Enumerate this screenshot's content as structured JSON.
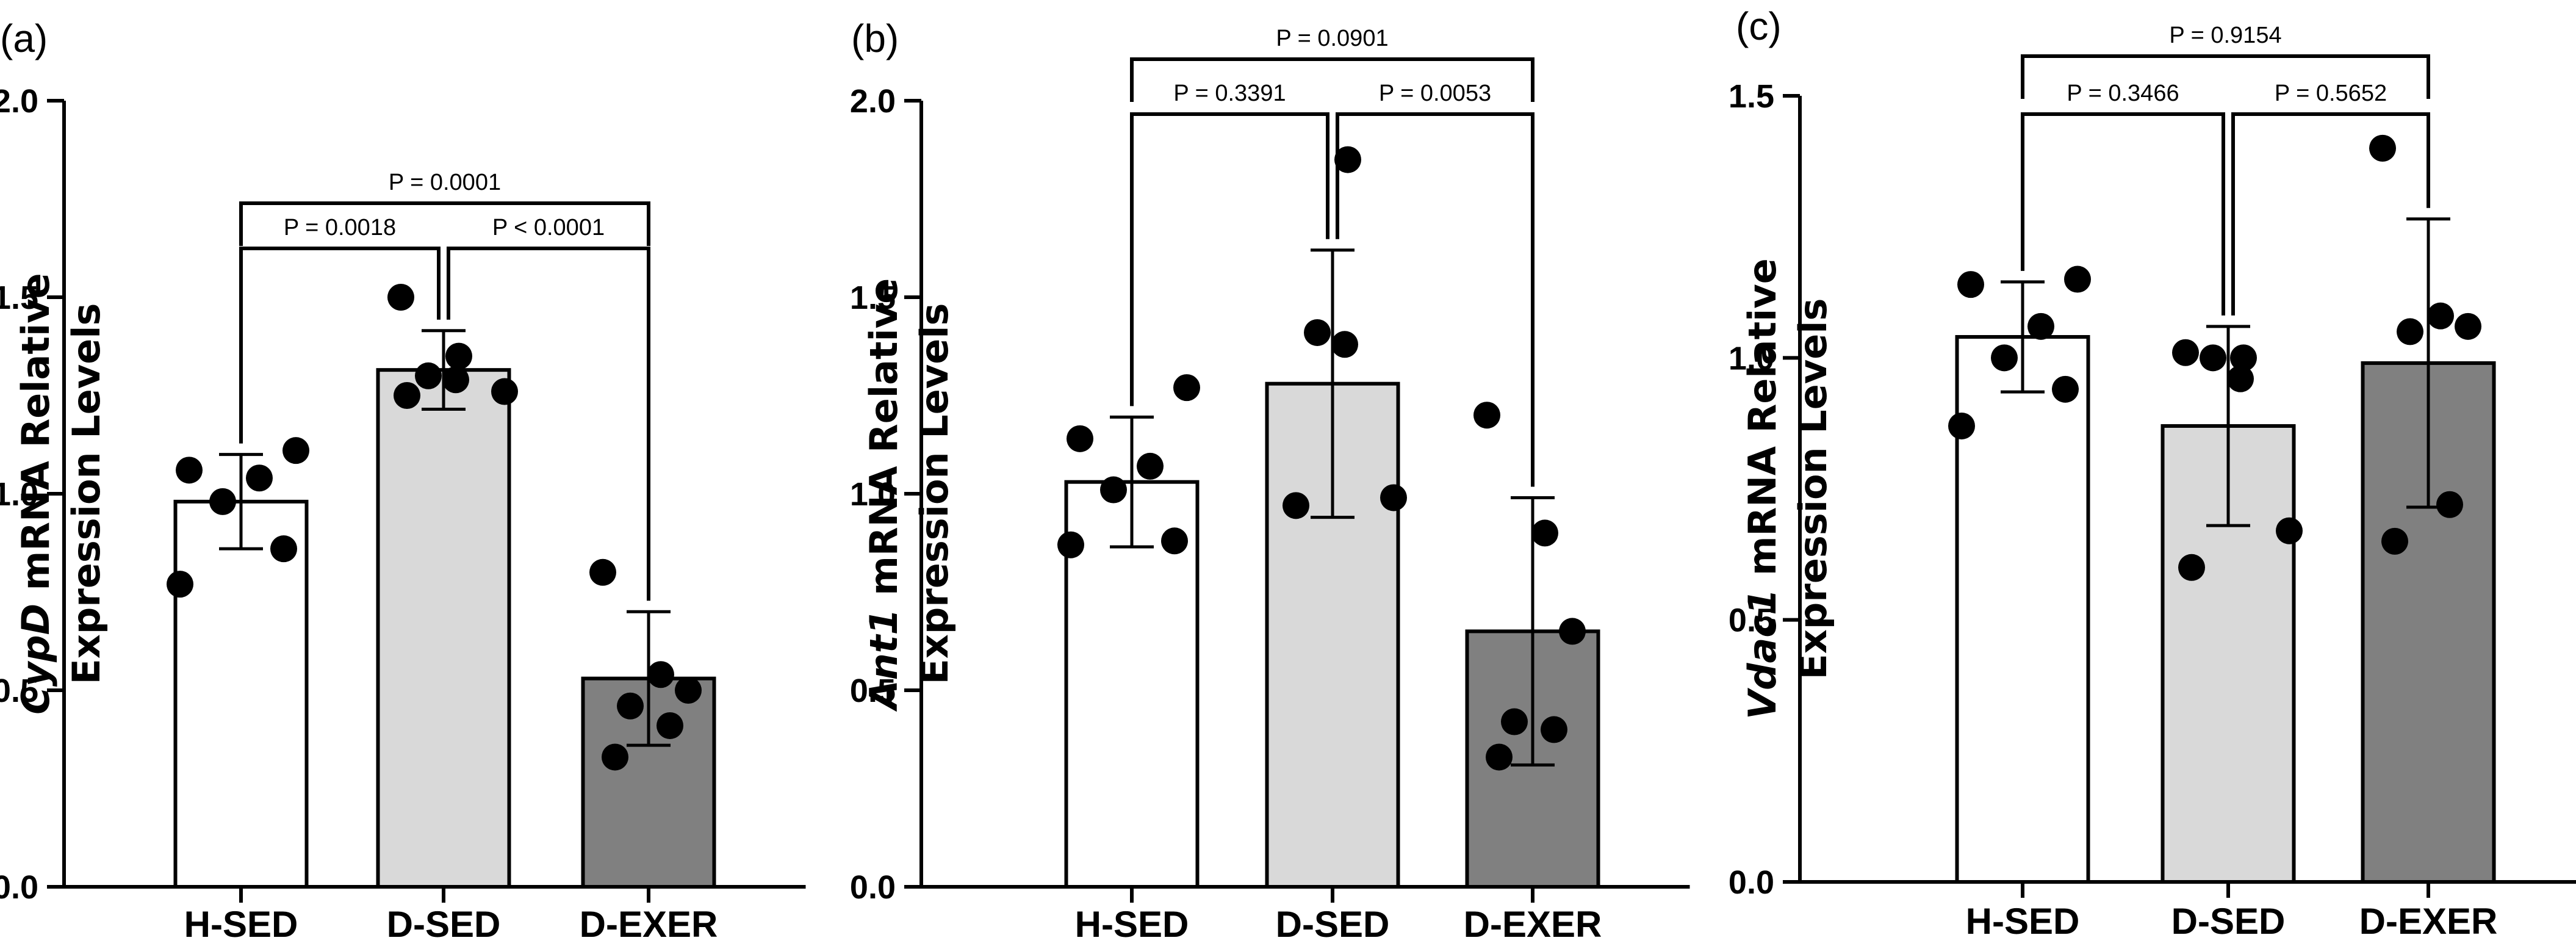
{
  "chart_data": [
    {
      "type": "bar",
      "panel_label": "(a)",
      "ylabel_gene": "CypD",
      "ylabel_rest": " mRNA Relative",
      "ylabel_line2": "Expression Levels",
      "ylim": [
        0,
        2.0
      ],
      "yticks": [
        "0.0",
        "0.5",
        "1.0",
        "1.5",
        "2.0"
      ],
      "categories": [
        "H-SED",
        "D-SED",
        "D-EXER"
      ],
      "means": [
        0.98,
        1.315,
        0.53
      ],
      "errors": [
        0.12,
        0.1,
        0.17
      ],
      "bar_colors": [
        "#ffffff",
        "#d9d9d9",
        "#808080"
      ],
      "points": [
        [
          0.77,
          0.86,
          0.98,
          1.04,
          1.06,
          1.11
        ],
        [
          1.25,
          1.26,
          1.29,
          1.3,
          1.35,
          1.5
        ],
        [
          0.33,
          0.41,
          0.46,
          0.5,
          0.54,
          0.8
        ]
      ],
      "comparisons": [
        {
          "from": 0,
          "to": 1,
          "label": "P = 0.0018",
          "level": 1
        },
        {
          "from": 1,
          "to": 2,
          "label": "P < 0.0001",
          "level": 1
        },
        {
          "from": 0,
          "to": 2,
          "label": "P = 0.0001",
          "level": 2
        }
      ]
    },
    {
      "type": "bar",
      "panel_label": "(b)",
      "ylabel_gene": "Ant1",
      "ylabel_rest": " mRNA Relative",
      "ylabel_line2": "Expression Levels",
      "ylim": [
        0,
        2.0
      ],
      "yticks": [
        "0.0",
        "0.5",
        "1.0",
        "1.5",
        "2.0"
      ],
      "categories": [
        "H-SED",
        "D-SED",
        "D-EXER"
      ],
      "means": [
        1.03,
        1.28,
        0.65
      ],
      "errors": [
        0.165,
        0.34,
        0.34
      ],
      "bar_colors": [
        "#ffffff",
        "#d9d9d9",
        "#808080"
      ],
      "points": [
        [
          0.87,
          0.88,
          1.01,
          1.07,
          1.14,
          1.27
        ],
        [
          0.97,
          0.99,
          1.38,
          1.41,
          1.85
        ],
        [
          0.33,
          0.4,
          0.42,
          0.65,
          0.9,
          1.2
        ]
      ],
      "comparisons": [
        {
          "from": 0,
          "to": 1,
          "label": "P = 0.3391",
          "level": 1
        },
        {
          "from": 1,
          "to": 2,
          "label": "P = 0.0053",
          "level": 1
        },
        {
          "from": 0,
          "to": 2,
          "label": "P = 0.0901",
          "level": 2
        }
      ]
    },
    {
      "type": "bar",
      "panel_label": "(c)",
      "ylabel_gene": "Vdac1",
      "ylabel_rest": " mRNA Relative",
      "ylabel_line2": "Expression Levels",
      "ylim": [
        0,
        1.5
      ],
      "yticks": [
        "0.0",
        "0.5",
        "1.0",
        "1.5"
      ],
      "categories": [
        "H-SED",
        "D-SED",
        "D-EXER"
      ],
      "means": [
        1.04,
        0.87,
        0.99
      ],
      "errors": [
        0.105,
        0.19,
        0.275
      ],
      "bar_colors": [
        "#ffffff",
        "#d9d9d9",
        "#808080"
      ],
      "points": [
        [
          0.87,
          0.94,
          1.0,
          1.06,
          1.14,
          1.15
        ],
        [
          0.6,
          0.67,
          0.96,
          1.0,
          1.0,
          1.01
        ],
        [
          0.65,
          0.72,
          1.05,
          1.06,
          1.08,
          1.4
        ]
      ],
      "comparisons": [
        {
          "from": 0,
          "to": 1,
          "label": "P = 0.3466",
          "level": 1
        },
        {
          "from": 1,
          "to": 2,
          "label": "P = 0.5652",
          "level": 1
        },
        {
          "from": 0,
          "to": 2,
          "label": "P = 0.9154",
          "level": 2
        }
      ]
    }
  ]
}
